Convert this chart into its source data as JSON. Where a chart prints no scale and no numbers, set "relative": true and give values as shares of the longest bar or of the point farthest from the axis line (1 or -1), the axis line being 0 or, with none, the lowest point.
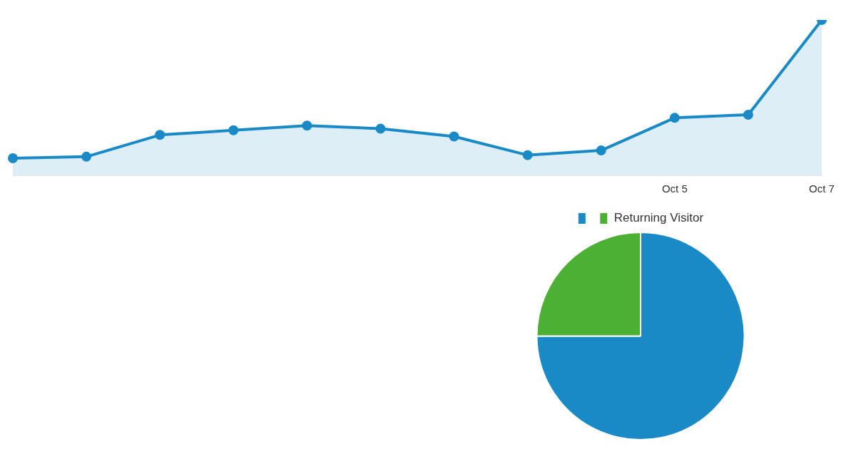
{
  "chart_data": [
    {
      "type": "area",
      "relative": true,
      "categories": [
        null,
        null,
        null,
        null,
        null,
        null,
        null,
        null,
        null,
        "Oct 5",
        null,
        "Oct 7"
      ],
      "series": [
        {
          "color": "#1a8ac6",
          "values": [
            0.11,
            0.12,
            0.26,
            0.29,
            0.32,
            0.3,
            0.25,
            0.13,
            0.16,
            0.37,
            0.39,
            1
          ]
        }
      ],
      "marker": "circle",
      "legend": false
    },
    {
      "type": "pie",
      "categories": [
        null,
        "Returning Visitor"
      ],
      "values": [
        75,
        25
      ],
      "colors": [
        "#1a8ac6",
        "#4cb034"
      ],
      "legend": "top"
    }
  ]
}
